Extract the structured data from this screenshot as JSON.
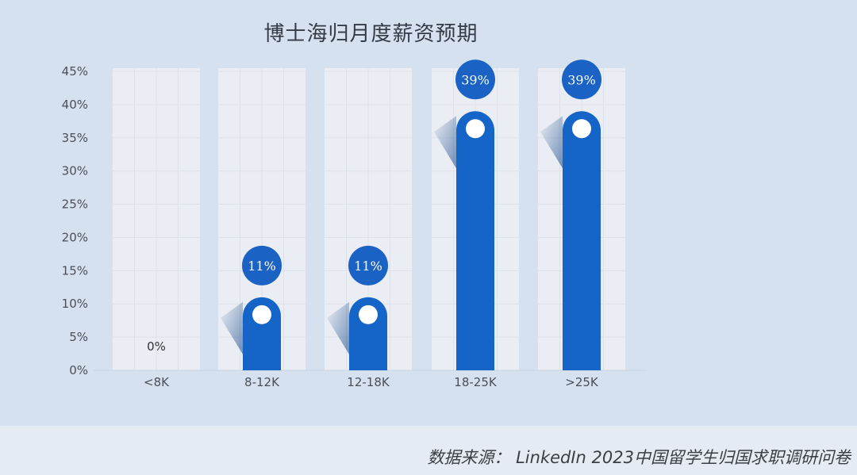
{
  "chart_data": {
    "type": "bar",
    "title": "博士海归月度薪资预期",
    "categories": [
      "<8K",
      "8-12K",
      "12-18K",
      "18-25K",
      ">25K"
    ],
    "values": [
      0,
      11,
      11,
      39,
      39
    ],
    "data_labels": [
      "0%",
      "11%",
      "11%",
      "39%",
      "39%"
    ],
    "y_ticks": [
      "0%",
      "5%",
      "10%",
      "15%",
      "20%",
      "25%",
      "30%",
      "35%",
      "40%",
      "45%"
    ],
    "ylim": [
      0,
      45
    ],
    "xlabel": "",
    "ylabel": "",
    "grid": true,
    "colors": {
      "bar": "#1565c8",
      "label_circle": "#1a62c4",
      "category_band": "#eaedf3",
      "grid": "#dde1e8"
    }
  },
  "source_note": "数据来源： LinkedIn 2023中国留学生归国求职调研问卷"
}
